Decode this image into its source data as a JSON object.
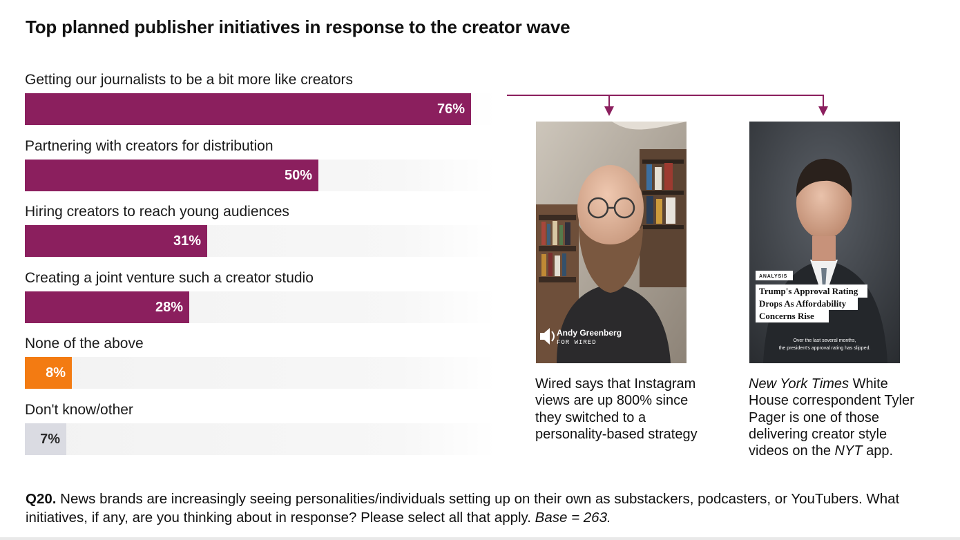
{
  "colors": {
    "primary_bar": "#8b1f5e",
    "highlight_bar": "#f37b12",
    "neutral_bar": "#dadbe2",
    "connector": "#8b1f5e"
  },
  "chart_data": {
    "type": "bar",
    "orientation": "horizontal",
    "title": "Top planned publisher initiatives in response to the creator wave",
    "categories": [
      "Getting our journalists to be a bit more like creators",
      "Partnering with creators for distribution",
      "Hiring creators to reach young audiences",
      "Creating a joint venture such a creator studio",
      "None of the above",
      "Don't know/other"
    ],
    "values": [
      76,
      50,
      31,
      28,
      8,
      7
    ],
    "value_labels": [
      "76%",
      "50%",
      "31%",
      "28%",
      "8%",
      "7%"
    ],
    "bar_colors": [
      "primary",
      "primary",
      "primary",
      "primary",
      "highlight",
      "neutral"
    ],
    "xlim": [
      0,
      80
    ],
    "unit": "%"
  },
  "examples": [
    {
      "overlay_name": "Andy Greenberg",
      "overlay_outlet": "FOR WIRED",
      "caption": "Wired says that Instagram views are up 800% since they switched to a personality-based strategy"
    },
    {
      "overlay_tag": "ANALYSIS",
      "overlay_headline_1": "Trump's Approval Rating",
      "overlay_headline_2": "Drops As Affordability",
      "overlay_headline_3": "Concerns Rise",
      "overlay_sub_1": "Over the last several months,",
      "overlay_sub_2": "the president's approval rating has slipped.",
      "caption_italic_1": "New York Times",
      "caption_part_2": " White House correspondent Tyler Pager is one of those delivering creator style videos on the ",
      "caption_italic_2": "NYT",
      "caption_part_3": " app."
    }
  ],
  "footnote": {
    "question_id": "Q20.",
    "text": " News brands are increasingly seeing personalities/individuals setting up on their own as substackers, podcasters, or YouTubers. What initiatives, if any, are you thinking about in response? Please select all that apply. ",
    "base": "Base = 263."
  }
}
